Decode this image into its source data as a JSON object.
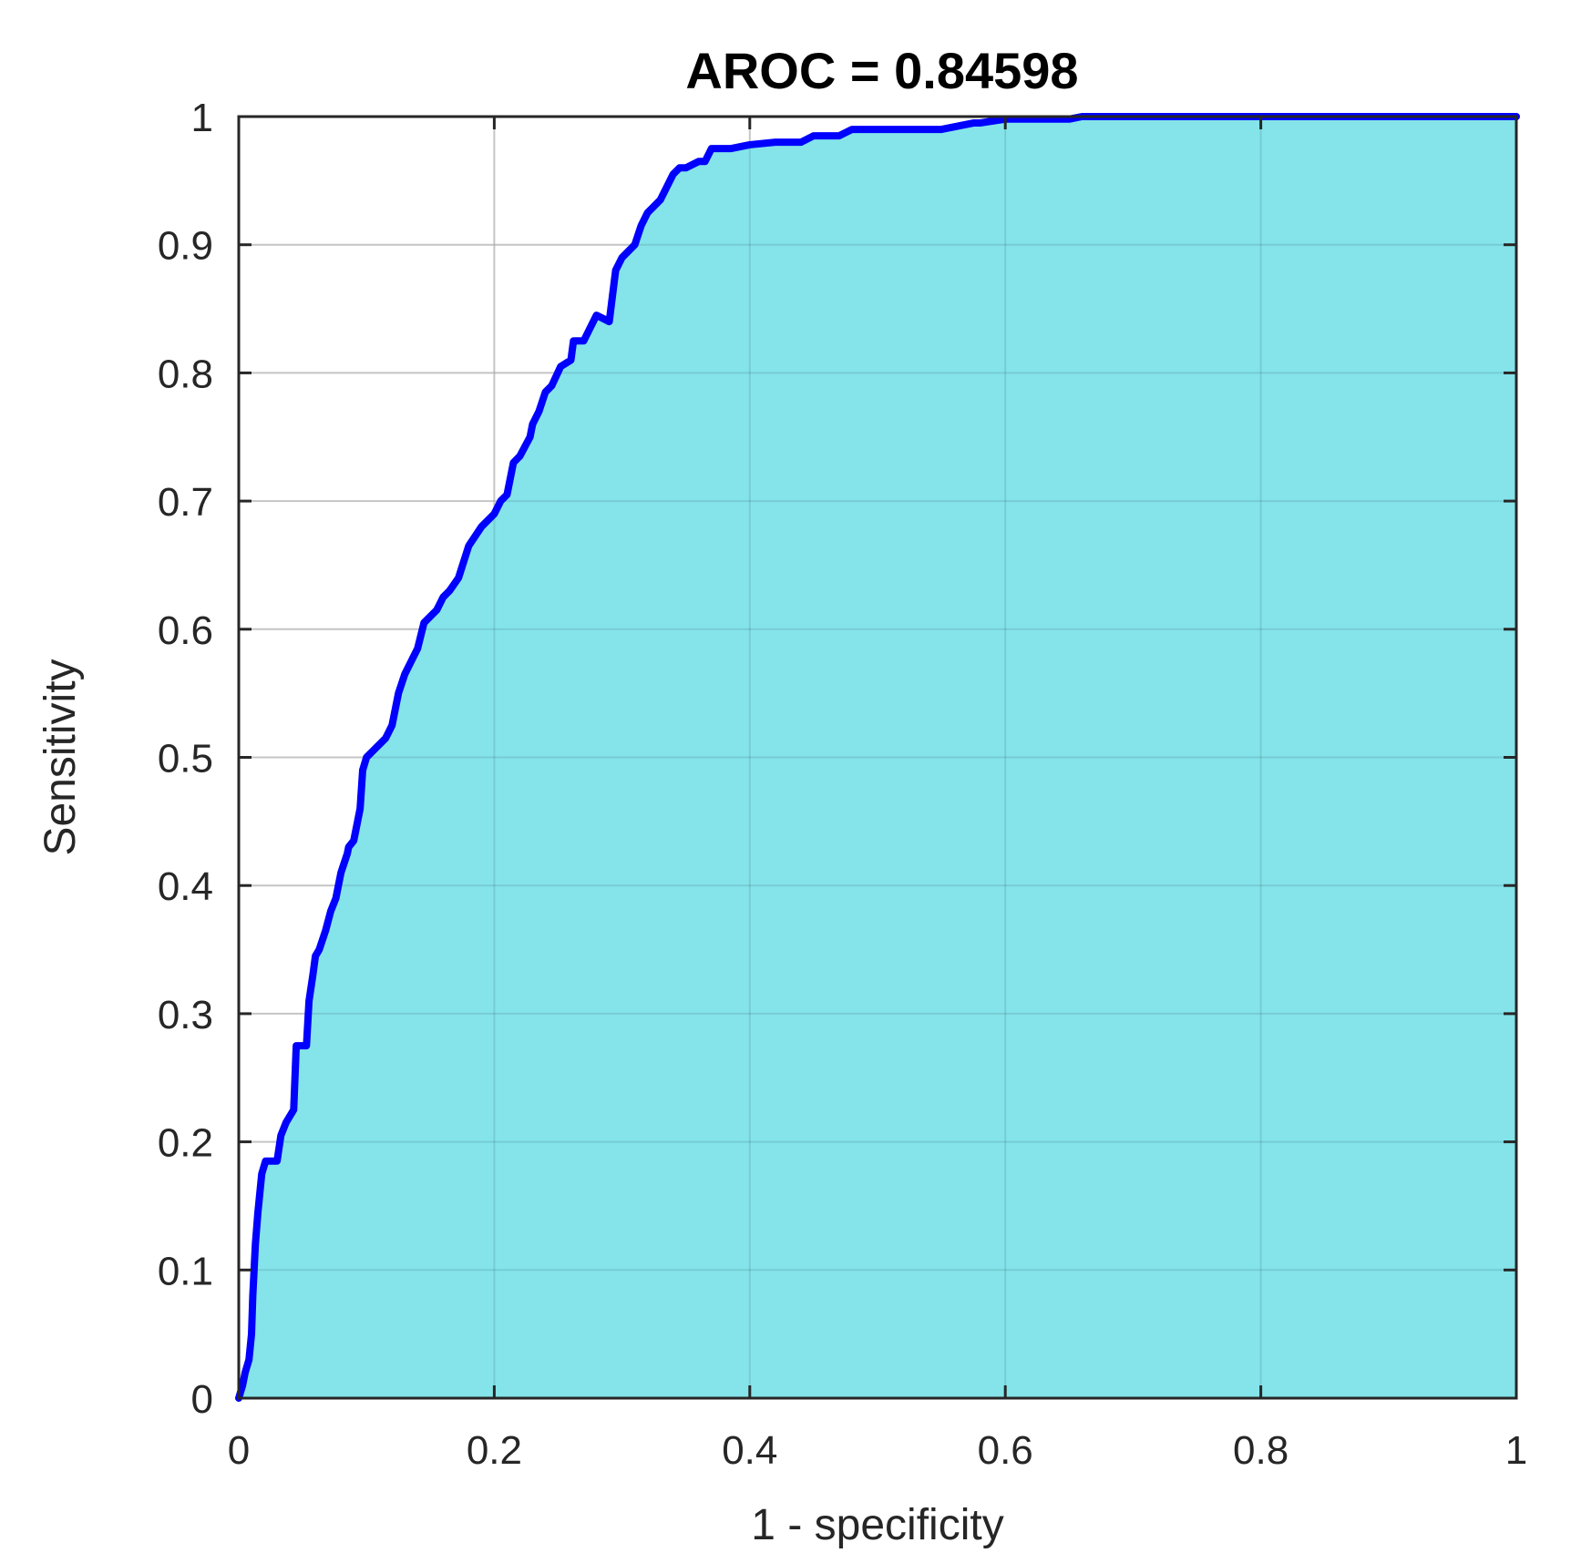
{
  "chart_data": {
    "type": "area",
    "title": "AROC = 0.84598",
    "xlabel": "1 - specificity",
    "ylabel": "Sensitivity",
    "xlim": [
      0,
      1
    ],
    "ylim": [
      0,
      1
    ],
    "grid": true,
    "x_ticks": [
      0,
      0.2,
      0.4,
      0.6,
      0.8,
      1
    ],
    "x_tick_labels": [
      "0",
      "0.2",
      "0.4",
      "0.6",
      "0.8",
      "1"
    ],
    "y_ticks": [
      0,
      0.1,
      0.2,
      0.3,
      0.4,
      0.5,
      0.6,
      0.7,
      0.8,
      0.9,
      1
    ],
    "y_tick_labels": [
      "0",
      "0.1",
      "0.2",
      "0.3",
      "0.4",
      "0.5",
      "0.6",
      "0.7",
      "0.8",
      "0.9",
      "1"
    ],
    "colors": {
      "line": "#0000ff",
      "fill": "#84e4ea",
      "grid": "#dcdcdc",
      "axes": "#262626",
      "ylabel_color": "#a0522d"
    },
    "series": [
      {
        "x": [
          0,
          0.003,
          0.005,
          0.008,
          0.01,
          0.011,
          0.012,
          0.013,
          0.015,
          0.018,
          0.021,
          0.03,
          0.033,
          0.037,
          0.043,
          0.045,
          0.053,
          0.055,
          0.058,
          0.06,
          0.063,
          0.068,
          0.072,
          0.076,
          0.08,
          0.085,
          0.086,
          0.09,
          0.095,
          0.097,
          0.1,
          0.105,
          0.11,
          0.115,
          0.12,
          0.125,
          0.13,
          0.135,
          0.14,
          0.145,
          0.15,
          0.155,
          0.16,
          0.165,
          0.172,
          0.18,
          0.19,
          0.2,
          0.205,
          0.21,
          0.215,
          0.22,
          0.228,
          0.23,
          0.235,
          0.24,
          0.245,
          0.252,
          0.26,
          0.262,
          0.27,
          0.275,
          0.28,
          0.29,
          0.295,
          0.3,
          0.31,
          0.315,
          0.32,
          0.33,
          0.335,
          0.34,
          0.345,
          0.35,
          0.36,
          0.365,
          0.37,
          0.385,
          0.4,
          0.42,
          0.44,
          0.45,
          0.47,
          0.48,
          0.5,
          0.52,
          0.55,
          0.575,
          0.58,
          0.6,
          0.65,
          0.66,
          0.7,
          0.8,
          0.9,
          1
        ],
        "y": [
          0,
          0.01,
          0.02,
          0.03,
          0.05,
          0.08,
          0.1,
          0.12,
          0.145,
          0.175,
          0.185,
          0.185,
          0.205,
          0.215,
          0.225,
          0.275,
          0.275,
          0.31,
          0.33,
          0.345,
          0.35,
          0.365,
          0.38,
          0.39,
          0.41,
          0.425,
          0.43,
          0.435,
          0.46,
          0.49,
          0.5,
          0.505,
          0.51,
          0.515,
          0.525,
          0.55,
          0.565,
          0.575,
          0.585,
          0.605,
          0.61,
          0.615,
          0.625,
          0.63,
          0.64,
          0.665,
          0.68,
          0.69,
          0.7,
          0.705,
          0.73,
          0.735,
          0.75,
          0.76,
          0.77,
          0.785,
          0.79,
          0.805,
          0.81,
          0.825,
          0.825,
          0.835,
          0.845,
          0.84,
          0.88,
          0.89,
          0.9,
          0.915,
          0.925,
          0.935,
          0.945,
          0.955,
          0.96,
          0.96,
          0.965,
          0.965,
          0.975,
          0.975,
          0.978,
          0.98,
          0.98,
          0.985,
          0.985,
          0.99,
          0.99,
          0.99,
          0.99,
          0.995,
          0.995,
          0.998,
          0.998,
          1,
          1,
          1,
          1,
          1
        ]
      }
    ]
  }
}
